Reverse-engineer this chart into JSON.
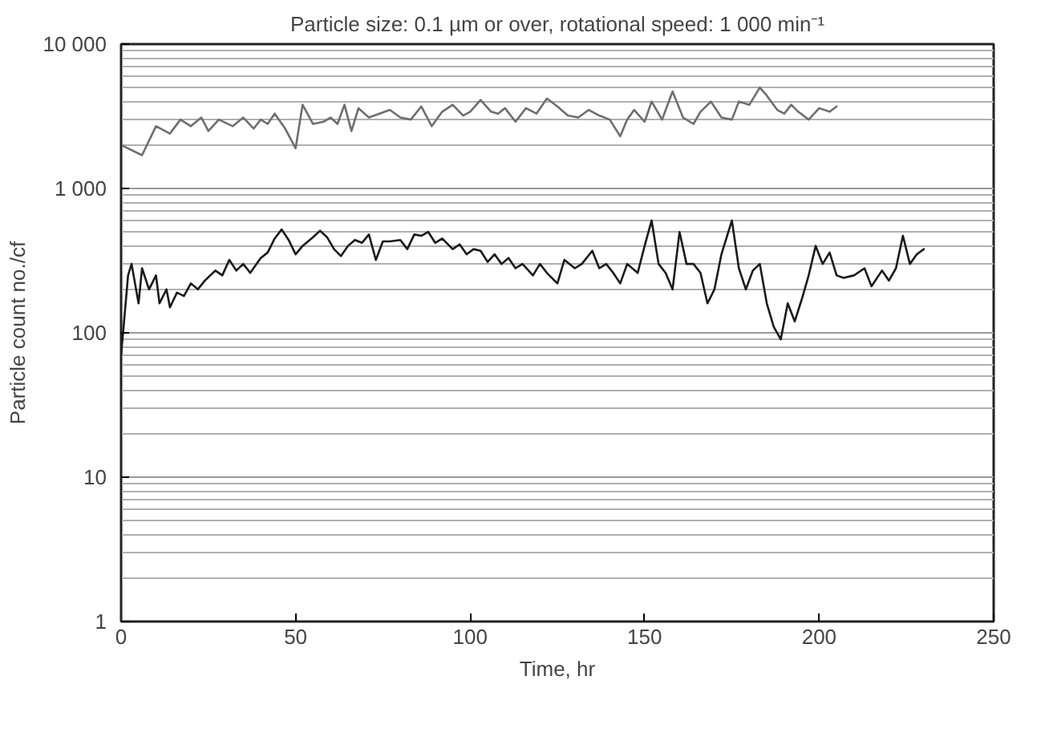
{
  "chart_data": {
    "type": "line",
    "title": "Particle size: 0.1 µm or over, rotational speed: 1 000 min⁻¹",
    "xlabel": "Time, hr",
    "ylabel": "Particle count no./cf",
    "xlim": [
      0,
      250
    ],
    "xticks": [
      0,
      50,
      100,
      150,
      200,
      250
    ],
    "ylim": [
      1,
      10000
    ],
    "yticks": [
      1,
      10,
      100,
      {
        "value": 1000,
        "label": "1 000"
      },
      {
        "value": 10000,
        "label": "10 000"
      }
    ],
    "log": "y",
    "grid": "y",
    "marker": "none",
    "line_style": "solid",
    "series": [
      {
        "color": "#6e6e6e",
        "x": [
          0,
          6,
          10,
          14,
          17,
          20,
          23,
          25,
          28,
          32,
          35,
          38,
          40,
          42,
          44,
          47,
          50,
          52,
          55,
          58,
          60,
          62,
          64,
          66,
          68,
          71,
          74,
          77,
          80,
          83,
          86,
          89,
          92,
          95,
          98,
          100,
          103,
          106,
          108,
          110,
          113,
          116,
          119,
          122,
          125,
          128,
          131,
          134,
          137,
          140,
          143,
          145,
          147,
          150,
          152,
          155,
          158,
          161,
          164,
          166,
          169,
          172,
          175,
          177,
          180,
          183,
          185,
          188,
          190,
          192,
          194,
          197,
          200,
          203,
          205
        ],
        "values": [
          2000,
          1700,
          2700,
          2400,
          3000,
          2700,
          3100,
          2500,
          3000,
          2700,
          3100,
          2600,
          3000,
          2800,
          3300,
          2600,
          1900,
          3800,
          2800,
          2900,
          3100,
          2800,
          3800,
          2500,
          3600,
          3100,
          3300,
          3500,
          3100,
          3000,
          3700,
          2700,
          3400,
          3800,
          3200,
          3400,
          4100,
          3400,
          3300,
          3600,
          2900,
          3600,
          3300,
          4200,
          3700,
          3200,
          3100,
          3500,
          3200,
          3000,
          2300,
          3000,
          3500,
          2900,
          4000,
          3000,
          4700,
          3100,
          2800,
          3400,
          4000,
          3100,
          3000,
          4000,
          3800,
          5000,
          4400,
          3500,
          3300,
          3800,
          3400,
          3000,
          3600,
          3400,
          3700
        ]
      },
      {
        "color": "#1a1a1a",
        "x": [
          0,
          2,
          3,
          5,
          6,
          8,
          10,
          11,
          13,
          14,
          16,
          18,
          20,
          22,
          24,
          27,
          29,
          31,
          33,
          35,
          37,
          40,
          42,
          44,
          46,
          48,
          50,
          52,
          55,
          57,
          59,
          61,
          63,
          65,
          67,
          69,
          71,
          73,
          75,
          77,
          80,
          82,
          84,
          86,
          88,
          90,
          92,
          95,
          97,
          99,
          101,
          103,
          105,
          107,
          109,
          111,
          113,
          115,
          118,
          120,
          122,
          125,
          127,
          130,
          132,
          135,
          137,
          139,
          141,
          143,
          145,
          148,
          150,
          152,
          154,
          156,
          158,
          160,
          162,
          164,
          166,
          168,
          170,
          172,
          175,
          177,
          179,
          181,
          183,
          185,
          187,
          189,
          191,
          193,
          195,
          197,
          199,
          201,
          203,
          205,
          207,
          210,
          213,
          215,
          218,
          220,
          222,
          224,
          226,
          228,
          230
        ],
        "values": [
          70,
          250,
          300,
          160,
          280,
          200,
          250,
          160,
          200,
          150,
          190,
          180,
          220,
          200,
          230,
          270,
          250,
          320,
          270,
          300,
          260,
          330,
          360,
          450,
          520,
          440,
          350,
          400,
          460,
          510,
          460,
          380,
          340,
          400,
          440,
          420,
          480,
          320,
          430,
          430,
          440,
          380,
          480,
          470,
          500,
          420,
          450,
          380,
          410,
          350,
          380,
          370,
          310,
          350,
          300,
          330,
          280,
          300,
          250,
          300,
          260,
          220,
          320,
          280,
          300,
          370,
          280,
          300,
          260,
          220,
          300,
          260,
          400,
          600,
          300,
          260,
          200,
          500,
          300,
          300,
          260,
          160,
          200,
          350,
          600,
          280,
          200,
          270,
          300,
          160,
          110,
          90,
          160,
          120,
          170,
          250,
          400,
          300,
          360,
          250,
          240,
          250,
          280,
          210,
          270,
          230,
          280,
          470,
          300,
          350,
          380
        ]
      }
    ]
  }
}
